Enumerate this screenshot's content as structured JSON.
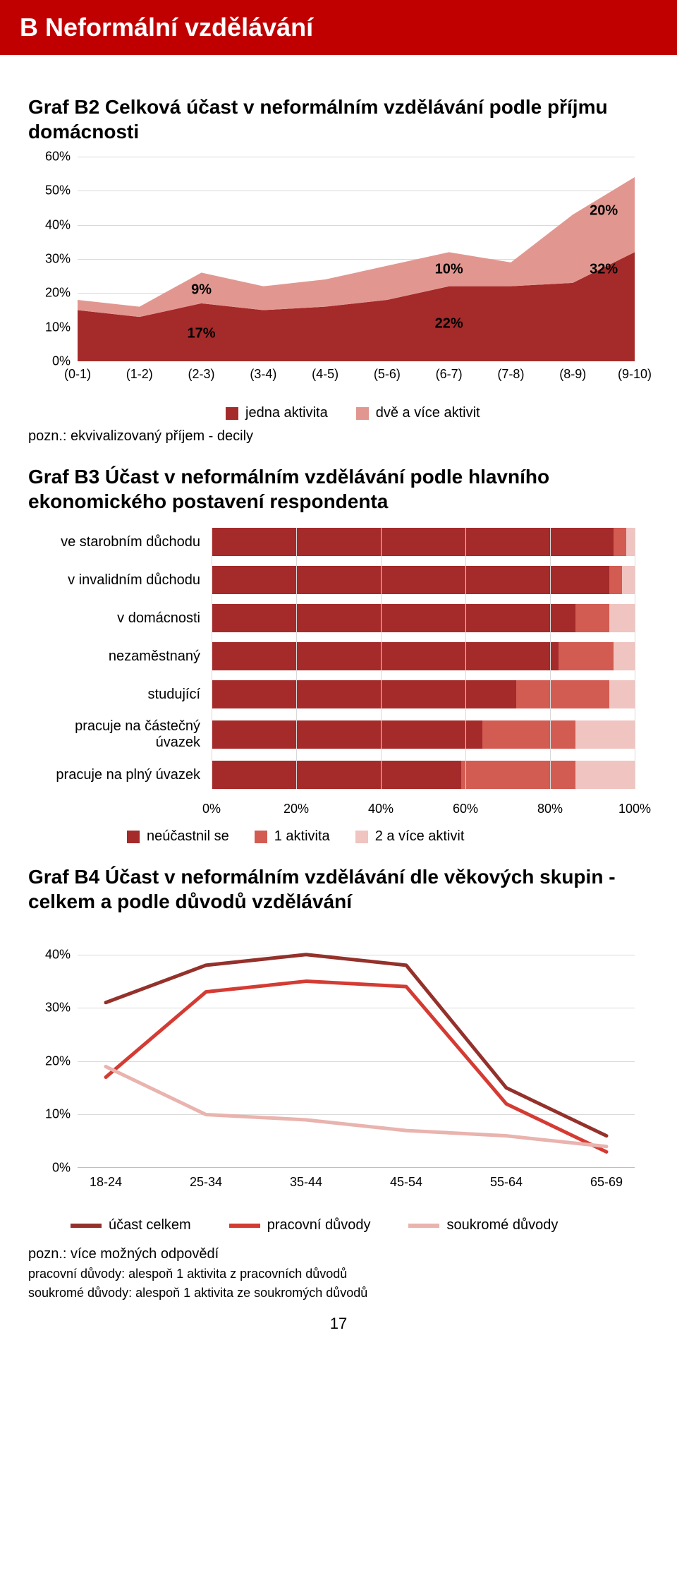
{
  "header": {
    "title": "B  Neformální vzdělávání"
  },
  "b2": {
    "title": "Graf B2 Celková účast v neformálním vzdělávání podle příjmu domácnosti",
    "type": "area-stacked",
    "x_categories": [
      "(0-1)",
      "(1-2)",
      "(2-3)",
      "(3-4)",
      "(4-5)",
      "(5-6)",
      "(6-7)",
      "(7-8)",
      "(8-9)",
      "(9-10)"
    ],
    "y_ticks": [
      "0%",
      "10%",
      "20%",
      "30%",
      "40%",
      "50%",
      "60%"
    ],
    "ylim": [
      0,
      60
    ],
    "series": [
      {
        "name": "jedna aktivita",
        "color": "#a52a2a",
        "values": [
          15,
          13,
          17,
          15,
          16,
          18,
          22,
          22,
          23,
          32
        ]
      },
      {
        "name": "dvě a více aktivit",
        "color": "#e19790",
        "values": [
          3,
          3,
          9,
          7,
          8,
          10,
          10,
          7,
          20,
          22
        ]
      }
    ],
    "annotations": [
      {
        "text": "17%",
        "x_index": 2,
        "y": 8
      },
      {
        "text": "9%",
        "x_index": 2,
        "y": 21
      },
      {
        "text": "22%",
        "x_index": 6,
        "y": 11
      },
      {
        "text": "10%",
        "x_index": 6,
        "y": 27
      },
      {
        "text": "32%",
        "x_index": 8.5,
        "y": 27
      },
      {
        "text": "20%",
        "x_index": 8.5,
        "y": 44
      }
    ],
    "legend_note": "pozn.: ekvivalizovaný příjem - decily",
    "grid_color": "#d9d9d9",
    "background_color": "#ffffff"
  },
  "b3": {
    "title": "Graf B3 Účast v neformálním vzdělávání podle hlavního ekonomického postavení respondenta",
    "type": "bar-stacked-horizontal",
    "x_ticks": [
      "0%",
      "20%",
      "40%",
      "60%",
      "80%",
      "100%"
    ],
    "xlim": [
      0,
      100
    ],
    "categories": [
      "ve starobním důchodu",
      "v invalidním důchodu",
      "v domácnosti",
      "nezaměstnaný",
      "studující",
      "pracuje na částečný úvazek",
      "pracuje na plný úvazek"
    ],
    "series": [
      {
        "name": "neúčastnil se",
        "color": "#a52a2a",
        "values": [
          95,
          94,
          86,
          82,
          72,
          64,
          59
        ]
      },
      {
        "name": "1 aktivita",
        "color": "#d25b52",
        "values": [
          3,
          3,
          8,
          13,
          22,
          22,
          27
        ]
      },
      {
        "name": "2 a více aktivit",
        "color": "#f0c4c0",
        "values": [
          2,
          3,
          6,
          5,
          6,
          14,
          14
        ]
      }
    ],
    "grid_color": "#d9d9d9",
    "background_color": "#ffffff"
  },
  "b4": {
    "title": "Graf B4 Účast v neformálním vzdělávání dle věkových skupin - celkem a podle důvodů vzdělávání",
    "type": "line",
    "x_categories": [
      "18-24",
      "25-34",
      "35-44",
      "45-54",
      "55-64",
      "65-69"
    ],
    "y_ticks": [
      "0%",
      "10%",
      "20%",
      "30%",
      "40%"
    ],
    "ylim": [
      0,
      45
    ],
    "line_width": 5,
    "series": [
      {
        "name": "účast celkem",
        "color": "#94312b",
        "values": [
          31,
          38,
          40,
          38,
          15,
          6
        ]
      },
      {
        "name": "pracovní důvody",
        "color": "#d43b33",
        "values": [
          17,
          33,
          35,
          34,
          12,
          3
        ]
      },
      {
        "name": "soukromé důvody",
        "color": "#e9b3ae",
        "values": [
          19,
          10,
          9,
          7,
          6,
          4
        ]
      }
    ],
    "notes": [
      "pozn.: více možných odpovědí",
      "pracovní důvody: alespoň 1 aktivita z pracovních důvodů",
      "soukromé důvody: alespoň 1 aktivita ze soukromých důvodů"
    ],
    "grid_color": "#d9d9d9",
    "background_color": "#ffffff"
  },
  "page_number": "17"
}
